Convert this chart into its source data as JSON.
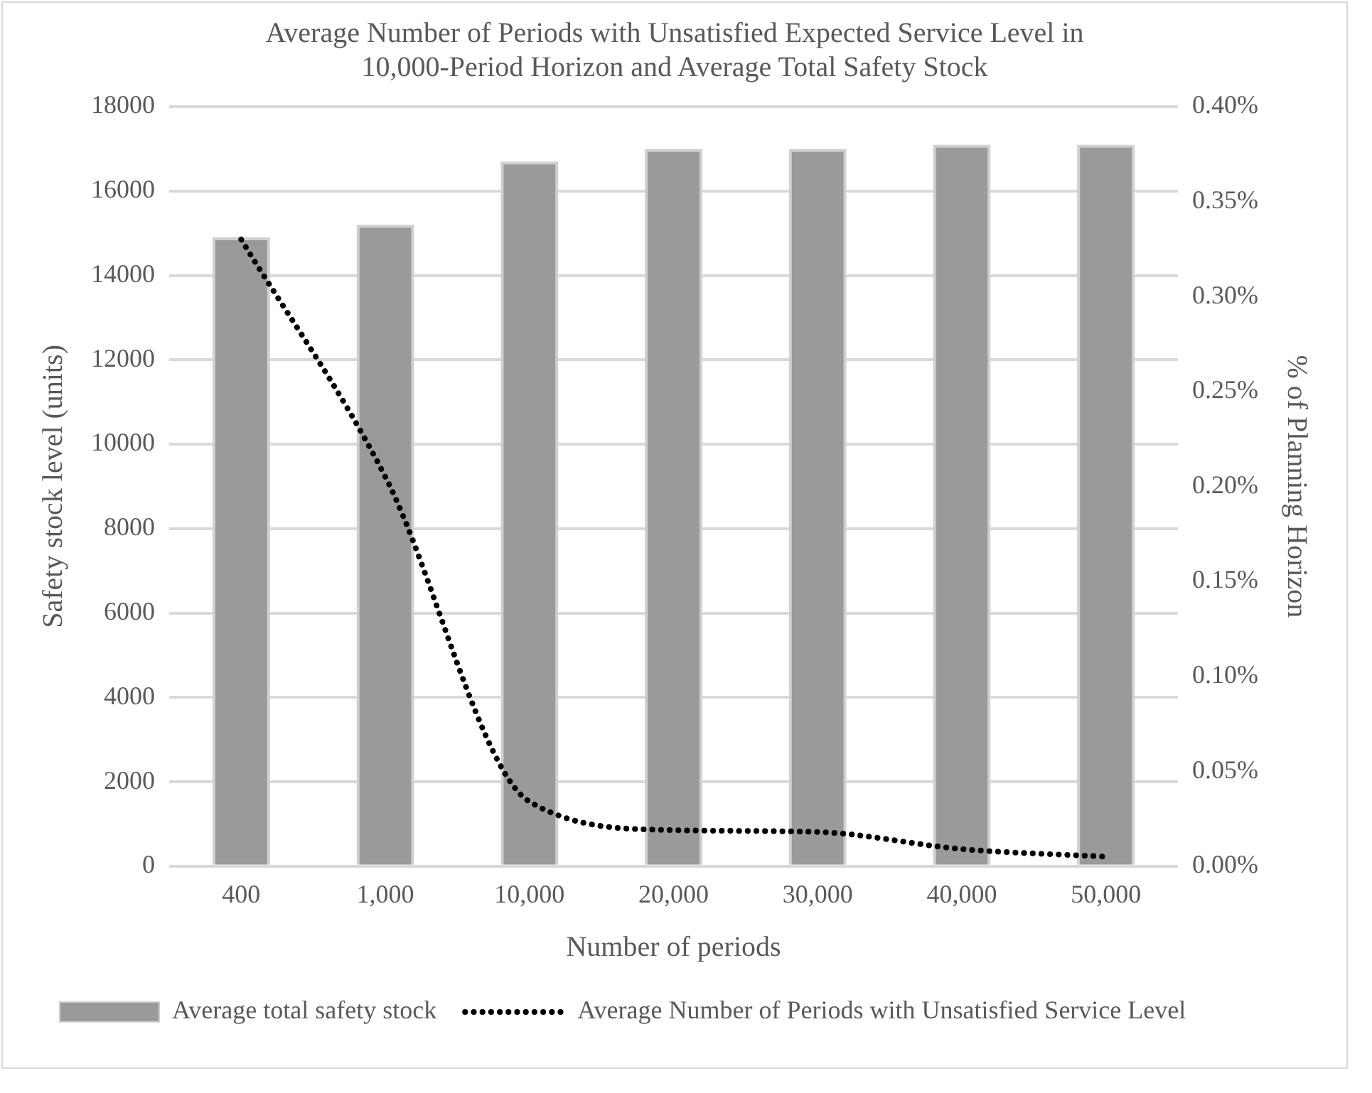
{
  "chart_data": {
    "type": "bar",
    "title": "Average Number of Periods with Unsatisfied Expected Service Level in 10,000-Period Horizon and Average Total Safety Stock",
    "xlabel": "Number of periods",
    "ylabel": "Safety stock level (units)",
    "y2label": "% of Planning Horizon",
    "categories": [
      "400",
      "1,000",
      "10,000",
      "20,000",
      "30,000",
      "40,000",
      "50,000"
    ],
    "series": [
      {
        "name": "Average total safety stock",
        "color": "#9a9a9a",
        "values": [
          14900,
          15200,
          16700,
          17000,
          17000,
          17100,
          17100
        ]
      },
      {
        "name": "Average Number of Periods with Unsatisfied Service Level",
        "type": "line",
        "axis": "y2",
        "color": "#000000",
        "line_style": "dotted",
        "marker": "none",
        "values": [
          0.33,
          0.205,
          0.034,
          0.019,
          0.018,
          0.009,
          0.005
        ]
      }
    ],
    "ylim": [
      0,
      18000
    ],
    "yticks": [
      0,
      2000,
      4000,
      6000,
      8000,
      10000,
      12000,
      14000,
      16000,
      18000
    ],
    "y2lim": [
      0,
      0.4
    ],
    "y2ticks": [
      {
        "value": 0,
        "label": "0.00%"
      },
      {
        "value": 0.05,
        "label": "0.05%"
      },
      {
        "value": 0.1,
        "label": "0.10%"
      },
      {
        "value": 0.15,
        "label": "0.15%"
      },
      {
        "value": 0.2,
        "label": "0.20%"
      },
      {
        "value": 0.25,
        "label": "0.25%"
      },
      {
        "value": 0.3,
        "label": "0.30%"
      },
      {
        "value": 0.35,
        "label": "0.35%"
      },
      {
        "value": 0.4,
        "label": "0.40%"
      }
    ],
    "grid": "y",
    "legend": "bottom"
  }
}
